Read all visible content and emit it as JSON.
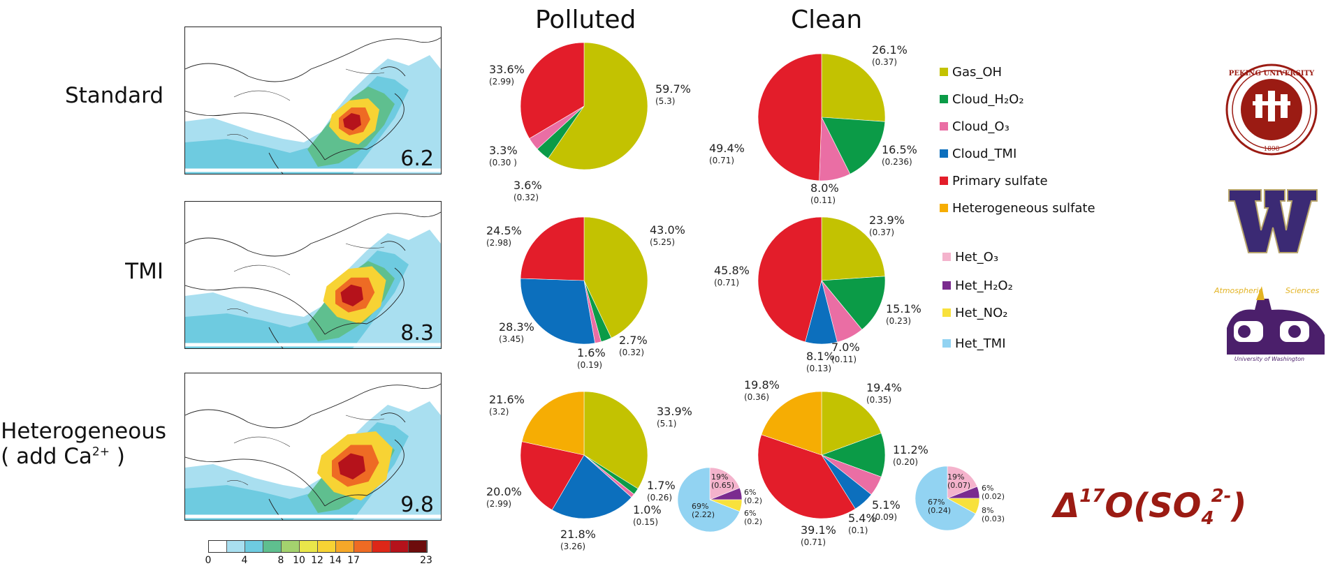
{
  "column_titles": {
    "polluted": "Polluted",
    "clean": "Clean"
  },
  "row_labels": {
    "standard": "Standard",
    "tmi": "TMI",
    "het_line1": "Heterogeneous",
    "het_line2_prefix": "( add Ca",
    "het_line2_sup": "2+",
    "het_line2_suffix": " )"
  },
  "maps": [
    {
      "name": "Standard",
      "value": "6.2"
    },
    {
      "name": "TMI",
      "value": "8.3"
    },
    {
      "name": "Heterogeneous",
      "value": "9.8"
    }
  ],
  "colorbar": {
    "colors": [
      "#ffffff",
      "#a9dff0",
      "#6ecbe0",
      "#5fbf8f",
      "#a4d26e",
      "#e9e64a",
      "#f7d334",
      "#f6a829",
      "#ee6b24",
      "#dd2718",
      "#b5121b",
      "#6d0c0c"
    ],
    "ticks": [
      "0",
      "4",
      "8",
      "10",
      "12",
      "14",
      "17",
      "23"
    ]
  },
  "colors": {
    "Gas_OH": "#c3c201",
    "Cloud_H2O2": "#0b9b47",
    "Cloud_O3": "#ea6ea4",
    "Cloud_TMI": "#0c6fbd",
    "Primary sulfate": "#e31d2a",
    "Heterogeneous sulfate": "#f6ad03",
    "Het_O3": "#f4b3cc",
    "Het_H2O2": "#7b2b8f",
    "Het_NO2": "#f8e13c",
    "Het_TMI": "#92d3f2"
  },
  "legend": {
    "main": [
      {
        "key": "Gas_OH",
        "label": "Gas_OH"
      },
      {
        "key": "Cloud_H2O2",
        "label": "Cloud_H₂O₂"
      },
      {
        "key": "Cloud_O3",
        "label": "Cloud_O₃"
      },
      {
        "key": "Cloud_TMI",
        "label": "Cloud_TMI"
      },
      {
        "key": "Primary sulfate",
        "label": "Primary sulfate"
      },
      {
        "key": "Heterogeneous sulfate",
        "label": "Heterogeneous sulfate"
      }
    ],
    "het": [
      {
        "key": "Het_O3",
        "label": "Het_O₃"
      },
      {
        "key": "Het_H2O2",
        "label": "Het_H₂O₂"
      },
      {
        "key": "Het_NO2",
        "label": "Het_NO₂"
      },
      {
        "key": "Het_TMI",
        "label": "Het_TMI"
      }
    ]
  },
  "title_formula": {
    "delta": "Δ",
    "sup": "17",
    "main": "O(SO",
    "sub": "4",
    "charge": "2-",
    "close": ")"
  },
  "chart_data": [
    {
      "type": "pie",
      "panel": "Standard / Polluted",
      "slices": [
        {
          "category": "Gas_OH",
          "value": 59.7,
          "label": "59.7%",
          "sub": "(5.3)"
        },
        {
          "category": "Cloud_H2O2",
          "value": 3.6,
          "label": "3.6%",
          "sub": "(0.32)"
        },
        {
          "category": "Cloud_O3",
          "value": 3.3,
          "label": "3.3%",
          "sub": "(0.30 )"
        },
        {
          "category": "Primary sulfate",
          "value": 33.6,
          "label": "33.6%",
          "sub": "(2.99)"
        }
      ]
    },
    {
      "type": "pie",
      "panel": "Standard / Clean",
      "slices": [
        {
          "category": "Gas_OH",
          "value": 26.1,
          "label": "26.1%",
          "sub": "(0.37)"
        },
        {
          "category": "Cloud_H2O2",
          "value": 16.5,
          "label": "16.5%",
          "sub": "(0.236)"
        },
        {
          "category": "Cloud_O3",
          "value": 8.0,
          "label": "8.0%",
          "sub": "(0.11)"
        },
        {
          "category": "Primary sulfate",
          "value": 49.4,
          "label": "49.4%",
          "sub": "(0.71)"
        }
      ]
    },
    {
      "type": "pie",
      "panel": "TMI / Polluted",
      "slices": [
        {
          "category": "Gas_OH",
          "value": 43.0,
          "label": "43.0%",
          "sub": "(5.25)"
        },
        {
          "category": "Cloud_H2O2",
          "value": 2.7,
          "label": "2.7%",
          "sub": "(0.32)"
        },
        {
          "category": "Cloud_O3",
          "value": 1.6,
          "label": "1.6%",
          "sub": "(0.19)"
        },
        {
          "category": "Cloud_TMI",
          "value": 28.3,
          "label": "28.3%",
          "sub": "(3.45)"
        },
        {
          "category": "Primary sulfate",
          "value": 24.5,
          "label": "24.5%",
          "sub": "(2.98)"
        }
      ]
    },
    {
      "type": "pie",
      "panel": "TMI / Clean",
      "slices": [
        {
          "category": "Gas_OH",
          "value": 23.9,
          "label": "23.9%",
          "sub": "(0.37)"
        },
        {
          "category": "Cloud_H2O2",
          "value": 15.1,
          "label": "15.1%",
          "sub": "(0.23)"
        },
        {
          "category": "Cloud_O3",
          "value": 7.0,
          "label": "7.0%",
          "sub": "(0.11)"
        },
        {
          "category": "Cloud_TMI",
          "value": 8.1,
          "label": "8.1%",
          "sub": "(0.13)"
        },
        {
          "category": "Primary sulfate",
          "value": 45.8,
          "label": "45.8%",
          "sub": "(0.71)"
        }
      ]
    },
    {
      "type": "pie",
      "panel": "Heterogeneous / Polluted",
      "slices": [
        {
          "category": "Gas_OH",
          "value": 33.9,
          "label": "33.9%",
          "sub": "(5.1)"
        },
        {
          "category": "Cloud_H2O2",
          "value": 1.7,
          "label": "1.7%",
          "sub": "(0.26)"
        },
        {
          "category": "Cloud_O3",
          "value": 1.0,
          "label": "1.0%",
          "sub": "(0.15)"
        },
        {
          "category": "Cloud_TMI",
          "value": 21.8,
          "label": "21.8%",
          "sub": "(3.26)"
        },
        {
          "category": "Primary sulfate",
          "value": 20.0,
          "label": "20.0%",
          "sub": "(2.99)"
        },
        {
          "category": "Heterogeneous sulfate",
          "value": 21.6,
          "label": "21.6%",
          "sub": "(3.2)"
        }
      ]
    },
    {
      "type": "pie",
      "panel": "Heterogeneous / Clean",
      "slices": [
        {
          "category": "Gas_OH",
          "value": 19.4,
          "label": "19.4%",
          "sub": "(0.35)"
        },
        {
          "category": "Cloud_H2O2",
          "value": 11.2,
          "label": "11.2%",
          "sub": "(0.20)"
        },
        {
          "category": "Cloud_O3",
          "value": 5.1,
          "label": "5.1%",
          "sub": "(0.09)"
        },
        {
          "category": "Cloud_TMI",
          "value": 5.4,
          "label": "5.4%",
          "sub": "(0.1)"
        },
        {
          "category": "Primary sulfate",
          "value": 39.1,
          "label": "39.1%",
          "sub": "(0.71)"
        },
        {
          "category": "Heterogeneous sulfate",
          "value": 19.8,
          "label": "19.8%",
          "sub": "(0.36)"
        }
      ]
    },
    {
      "type": "pie",
      "panel": "Heterogeneous sulfate breakdown / Polluted",
      "slices": [
        {
          "category": "Het_O3",
          "value": 19,
          "label": "19%",
          "sub": "(0.65)"
        },
        {
          "category": "Het_H2O2",
          "value": 6,
          "label": "6%",
          "sub": "(0.2)"
        },
        {
          "category": "Het_NO2",
          "value": 6,
          "label": "6%",
          "sub": "(0.2)"
        },
        {
          "category": "Het_TMI",
          "value": 69,
          "label": "69%",
          "sub": "(2.22)"
        }
      ]
    },
    {
      "type": "pie",
      "panel": "Heterogeneous sulfate breakdown / Clean",
      "slices": [
        {
          "category": "Het_O3",
          "value": 19,
          "label": "19%",
          "sub": "(0.07)"
        },
        {
          "category": "Het_H2O2",
          "value": 6,
          "label": "6%",
          "sub": "(0.02)"
        },
        {
          "category": "Het_NO2",
          "value": 8,
          "label": "8%",
          "sub": "(0.03)"
        },
        {
          "category": "Het_TMI",
          "value": 67,
          "label": "67%",
          "sub": "(0.24)"
        }
      ]
    }
  ]
}
